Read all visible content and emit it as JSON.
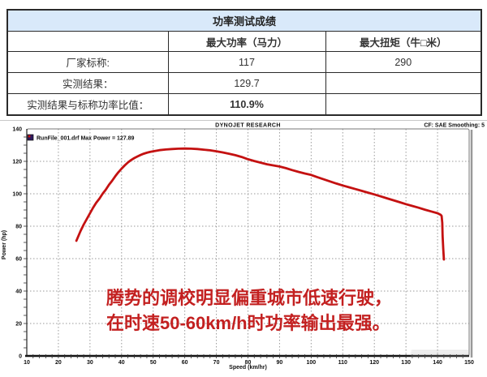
{
  "table": {
    "title": "功率测试成绩",
    "columns": [
      "",
      "最大功率（马力）",
      "最大扭矩（牛□米）"
    ],
    "rows": [
      {
        "label": "厂家标称:",
        "power": "117",
        "torque": "290"
      },
      {
        "label": "实测结果：",
        "power": "129.7",
        "torque": ""
      },
      {
        "label": "实测结果与标称功率比值：",
        "power": "110.9%",
        "torque": ""
      }
    ]
  },
  "chart_data": {
    "type": "line",
    "title": "DYNOJET RESEARCH",
    "corner_note": "CF: SAE  Smoothing: 5",
    "xlabel": "Speed (km/hr)",
    "ylabel": "Power (hp)",
    "xlim": [
      10,
      150
    ],
    "ylim": [
      0,
      140
    ],
    "x_ticks": [
      10,
      20,
      30,
      40,
      50,
      60,
      70,
      80,
      90,
      100,
      110,
      120,
      130,
      140,
      150
    ],
    "y_ticks": [
      0,
      20,
      40,
      60,
      80,
      100,
      120,
      140
    ],
    "x_minor_step": 2,
    "y_minor_step": 5,
    "grid": "dotted",
    "grid_color": "#9a9a9a",
    "legend": [
      {
        "label": "RunFile_001.drf Max Power = 127.89",
        "marker_color": "#2e1a5e"
      }
    ],
    "series": [
      {
        "name": "RunFile_001.drf",
        "color": "#c41111",
        "max_power_hp": 127.89,
        "points": [
          [
            25.7,
            71
          ],
          [
            27,
            77
          ],
          [
            28,
            81
          ],
          [
            29,
            84.5
          ],
          [
            30,
            88
          ],
          [
            31,
            91.5
          ],
          [
            32,
            94.5
          ],
          [
            33,
            97
          ],
          [
            34,
            100
          ],
          [
            35,
            102.5
          ],
          [
            36,
            105.5
          ],
          [
            37,
            108
          ],
          [
            38,
            110.8
          ],
          [
            39,
            113.3
          ],
          [
            40,
            115.5
          ],
          [
            41,
            117.5
          ],
          [
            42,
            119.3
          ],
          [
            43,
            120.8
          ],
          [
            44,
            122
          ],
          [
            45,
            123
          ],
          [
            46,
            123.9
          ],
          [
            47,
            124.7
          ],
          [
            48,
            125.3
          ],
          [
            49,
            125.8
          ],
          [
            50,
            126.2
          ],
          [
            52,
            126.9
          ],
          [
            54,
            127.3
          ],
          [
            56,
            127.6
          ],
          [
            58,
            127.8
          ],
          [
            60,
            127.89
          ],
          [
            62,
            127.8
          ],
          [
            64,
            127.6
          ],
          [
            66,
            127.2
          ],
          [
            68,
            126.8
          ],
          [
            70,
            126.2
          ],
          [
            72,
            125.5
          ],
          [
            74,
            124.7
          ],
          [
            76,
            123.8
          ],
          [
            78,
            122.7
          ],
          [
            80,
            121.3
          ],
          [
            82,
            120.2
          ],
          [
            84,
            119.2
          ],
          [
            86,
            118.2
          ],
          [
            88,
            117.5
          ],
          [
            90,
            116.8
          ],
          [
            92,
            115.8
          ],
          [
            94,
            114.6
          ],
          [
            96,
            113.5
          ],
          [
            98,
            112.5
          ],
          [
            100,
            111.6
          ],
          [
            102,
            110.2
          ],
          [
            104,
            108.9
          ],
          [
            106,
            107.6
          ],
          [
            108,
            106.3
          ],
          [
            110,
            105.1
          ],
          [
            112,
            104
          ],
          [
            114,
            102.9
          ],
          [
            116,
            101.8
          ],
          [
            118,
            100.7
          ],
          [
            120,
            99.6
          ],
          [
            122,
            98.4
          ],
          [
            124,
            97.2
          ],
          [
            126,
            96
          ],
          [
            128,
            94.8
          ],
          [
            130,
            93.6
          ],
          [
            132,
            92.5
          ],
          [
            134,
            91.4
          ],
          [
            136,
            90.2
          ],
          [
            138,
            89.1
          ],
          [
            140,
            88
          ],
          [
            141,
            87
          ],
          [
            141.3,
            86.3
          ],
          [
            141.5,
            82
          ],
          [
            141.6,
            74
          ],
          [
            141.8,
            66
          ],
          [
            142,
            59.5
          ]
        ]
      }
    ],
    "annotation": {
      "lines": [
        "腾势的调校明显偏重城市低速行驶，",
        "在时速50-60km/h时功率输出最强。"
      ],
      "color": "#c32020"
    }
  }
}
